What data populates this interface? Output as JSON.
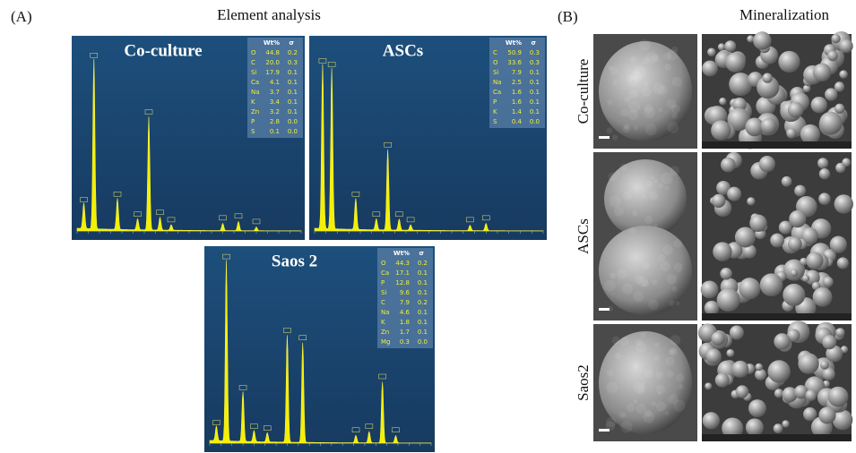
{
  "panel_a": {
    "label": "(A)",
    "title": "Element analysis",
    "spectra": [
      {
        "title": "Co-culture",
        "header": [
          "Wt%",
          "σ"
        ],
        "rows": [
          [
            "O",
            "44.8",
            "0.2"
          ],
          [
            "C",
            "20.0",
            "0.3"
          ],
          [
            "Si",
            "17.9",
            "0.1"
          ],
          [
            "Ca",
            "4.1",
            "0.1"
          ],
          [
            "Na",
            "3.7",
            "0.1"
          ],
          [
            "K",
            "3.4",
            "0.1"
          ],
          [
            "Zn",
            "3.2",
            "0.1"
          ],
          [
            "P",
            "2.8",
            "0.0"
          ],
          [
            "S",
            "0.1",
            "0.0"
          ]
        ]
      },
      {
        "title": "ASCs",
        "header": [
          "Wt%",
          "σ"
        ],
        "rows": [
          [
            "C",
            "50.9",
            "0.3"
          ],
          [
            "O",
            "33.6",
            "0.3"
          ],
          [
            "Si",
            "7.9",
            "0.1"
          ],
          [
            "Na",
            "2.5",
            "0.1"
          ],
          [
            "Ca",
            "1.6",
            "0.1"
          ],
          [
            "P",
            "1.6",
            "0.1"
          ],
          [
            "K",
            "1.4",
            "0.1"
          ],
          [
            "S",
            "0.4",
            "0.0"
          ]
        ]
      },
      {
        "title": "Saos 2",
        "header": [
          "Wt%",
          "σ"
        ],
        "rows": [
          [
            "O",
            "44.3",
            "0.2"
          ],
          [
            "Ca",
            "17.1",
            "0.1"
          ],
          [
            "P",
            "12.8",
            "0.1"
          ],
          [
            "Si",
            "9.6",
            "0.1"
          ],
          [
            "C",
            "7.9",
            "0.2"
          ],
          [
            "Na",
            "4.6",
            "0.1"
          ],
          [
            "K",
            "1.8",
            "0.1"
          ],
          [
            "Zn",
            "1.7",
            "0.1"
          ],
          [
            "Mg",
            "0.3",
            "0.0"
          ]
        ]
      }
    ]
  },
  "panel_b": {
    "label": "(B)",
    "title": "Mineralization",
    "rows": [
      "Co-culture",
      "ASCs",
      "Saos2"
    ]
  }
}
